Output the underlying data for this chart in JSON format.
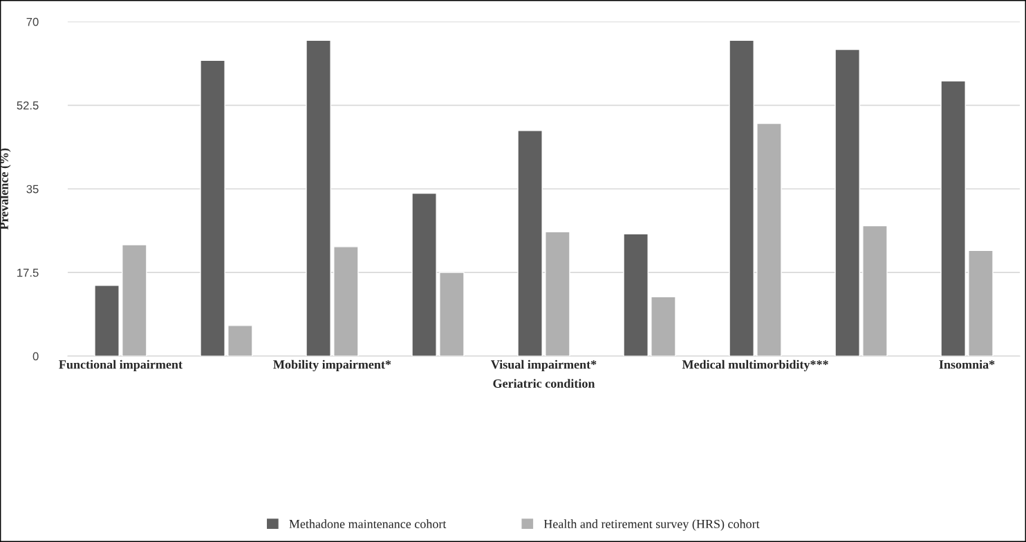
{
  "chart_data": {
    "type": "bar",
    "xlabel": "Geriatric condition",
    "ylabel": "Prevalence (%)",
    "categories": [
      "Functional impairment",
      null,
      "Mobility impairment*",
      null,
      "Visual impairment*",
      null,
      "Medical multimorbidity***",
      null,
      "Insomnia*"
    ],
    "series": [
      {
        "name": "Methadone maintenance cohort",
        "color": "#5f5f5f",
        "values": [
          14.8,
          61.9,
          66.1,
          34.1,
          47.2,
          25.6,
          66.1,
          64.2,
          57.6
        ]
      },
      {
        "name": "Health and retirement survey (HRS) cohort",
        "color": "#b0b0b0",
        "values": [
          23.3,
          6.4,
          22.9,
          17.5,
          26.0,
          12.4,
          48.7,
          27.3,
          22.1
        ]
      }
    ],
    "ylim": [
      0,
      70
    ],
    "yticks": [
      0,
      17.5,
      35,
      52.5,
      70
    ],
    "grid": "y",
    "legend": "bottom"
  }
}
